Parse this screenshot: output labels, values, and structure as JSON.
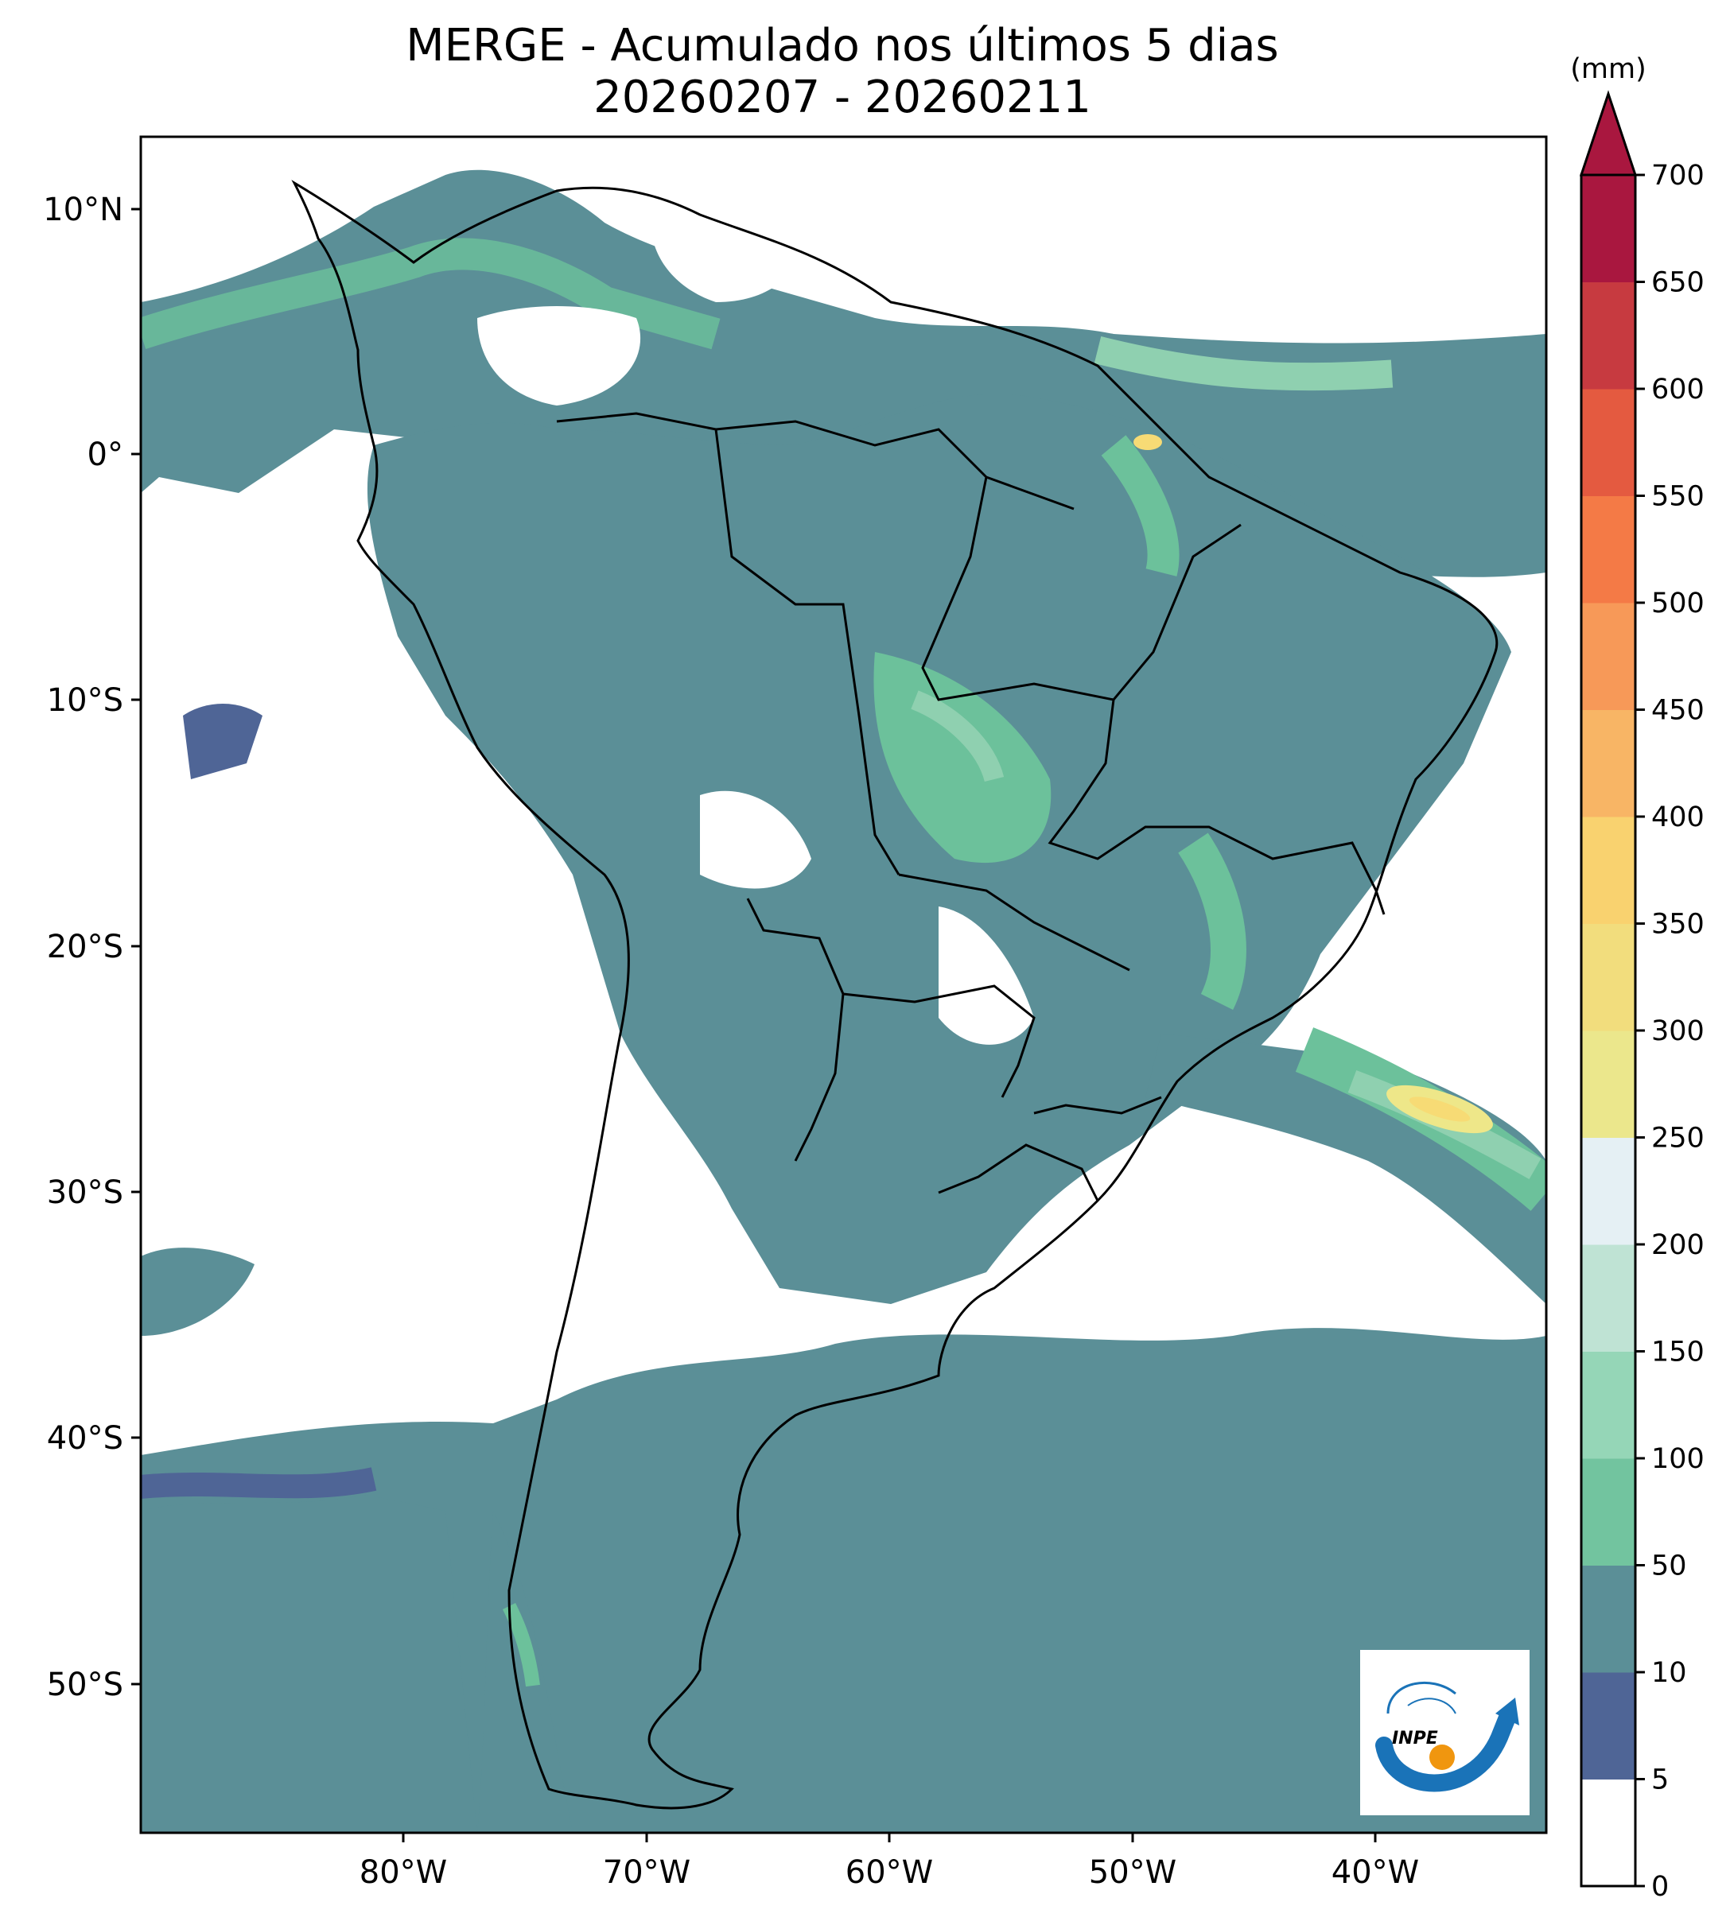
{
  "title": {
    "line1": "MERGE - Acumulado nos últimos 5 dias",
    "line2": "20260207 - 20260211"
  },
  "map": {
    "longitude_ticks": [
      "80°W",
      "70°W",
      "60°W",
      "50°W",
      "40°W"
    ],
    "latitude_ticks": [
      "10°N",
      "0°",
      "10°S",
      "20°S",
      "30°S",
      "40°S",
      "50°S"
    ],
    "lon_range": [
      -90,
      -33
    ],
    "lat_range": [
      -56,
      13
    ],
    "precip_field_colors": {
      "5-10": "#4f6596",
      "10-50": "#5b8f97",
      "50-100": "#6cc19b",
      "100-150": "#8fd0b0",
      "150-200": "#bfe3d4",
      "250-300": "#eee789",
      "300-350": "#f7db75"
    }
  },
  "colorbar": {
    "unit": "(mm)",
    "levels": [
      "0",
      "5",
      "10",
      "50",
      "100",
      "150",
      "200",
      "250",
      "300",
      "350",
      "400",
      "450",
      "500",
      "550",
      "600",
      "650",
      "700"
    ],
    "colors": [
      "#ffffff",
      "#4f6596",
      "#5b8f97",
      "#72c49f",
      "#95d6b7",
      "#bfe3d4",
      "#e5f0f4",
      "#ebe78c",
      "#f2dd7d",
      "#f9d26f",
      "#f8b565",
      "#f79958",
      "#f47a46",
      "#e45a40",
      "#c73a40",
      "#a9173f"
    ],
    "extend_color": "#a9173f"
  },
  "logo": {
    "text": "INPE",
    "icon": "inpe-logo-icon"
  }
}
